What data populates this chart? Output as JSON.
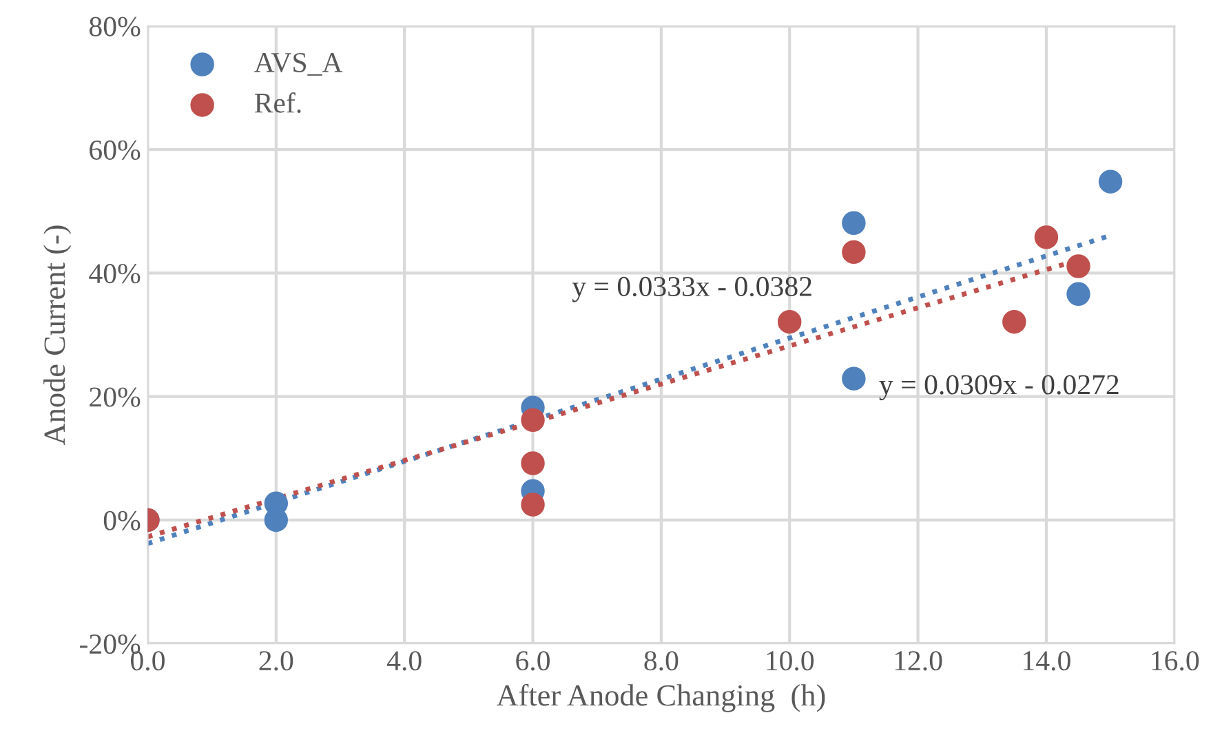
{
  "chart_data": {
    "type": "scatter",
    "xlabel": "After Anode Changing  (h)",
    "ylabel": "Anode Current (-)",
    "xlim": [
      0,
      16
    ],
    "xticks": [
      {
        "value": 0,
        "label": "0.0"
      },
      {
        "value": 2,
        "label": "2.0"
      },
      {
        "value": 4,
        "label": "4.0"
      },
      {
        "value": 6,
        "label": "6.0"
      },
      {
        "value": 8,
        "label": "8.0"
      },
      {
        "value": 10,
        "label": "10.0"
      },
      {
        "value": 12,
        "label": "12.0"
      },
      {
        "value": 14,
        "label": "14.0"
      },
      {
        "value": 16,
        "label": "16.0"
      }
    ],
    "ylim": [
      -20,
      80
    ],
    "yticks": [
      {
        "value": -20,
        "label": "-20%"
      },
      {
        "value": 0,
        "label": "0%"
      },
      {
        "value": 20,
        "label": "20%"
      },
      {
        "value": 40,
        "label": "40%"
      },
      {
        "value": 60,
        "label": "60%"
      },
      {
        "value": 80,
        "label": "80%"
      }
    ],
    "grid": true,
    "legend": "top left",
    "marker": "circle",
    "series": [
      {
        "name": "AVS_A",
        "color": "#4f81bd",
        "x": [
          0,
          2,
          2,
          6,
          6,
          11,
          11,
          14.5,
          15
        ],
        "values": [
          0,
          2.7,
          0,
          18.2,
          4.7,
          48.1,
          22.9,
          36.6,
          54.8
        ]
      },
      {
        "name": "Ref.",
        "color": "#c0504d",
        "x": [
          0,
          6,
          6,
          6,
          10,
          11,
          13.5,
          14,
          14.5
        ],
        "values": [
          0,
          16.2,
          9.2,
          2.5,
          32.1,
          43.4,
          32.1,
          45.8,
          41.1
        ]
      },
      {
        "type": "line",
        "color": "#4f81bd",
        "marker": "none",
        "line_style": "dotted",
        "x": [
          0,
          15
        ],
        "values": [
          -3.8,
          46.1
        ]
      },
      {
        "type": "line",
        "color": "#c0504d",
        "marker": "none",
        "line_style": "dotted",
        "x": [
          0,
          14.5
        ],
        "values": [
          -2.7,
          42.1
        ]
      }
    ],
    "annotations": [
      "y = 0.0333x - 0.0382",
      "y = 0.0309x - 0.0272"
    ]
  }
}
